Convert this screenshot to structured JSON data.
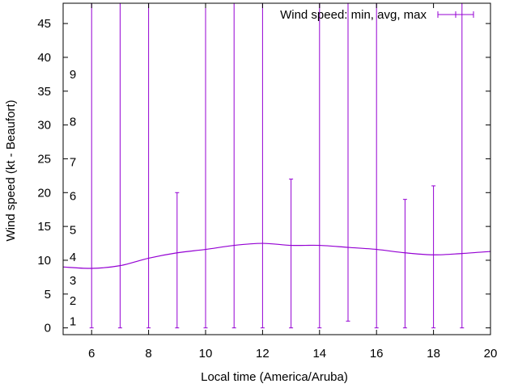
{
  "chart_data": {
    "type": "line",
    "title": "",
    "xlabel": "Local time (America/Aruba)",
    "ylabel": "Wind speed (kt - Beaufort)",
    "xlim": [
      5,
      20
    ],
    "ylim": [
      -1,
      48
    ],
    "x_ticks": [
      6,
      8,
      10,
      12,
      14,
      16,
      18,
      20
    ],
    "y_ticks": [
      0,
      5,
      10,
      15,
      20,
      25,
      30,
      35,
      40,
      45
    ],
    "grid": false,
    "legend": {
      "label": "Wind speed: min, avg, max",
      "position": "top-right"
    },
    "series_color": "#9400d3",
    "avg_curve": [
      {
        "x": 5,
        "y": 9.0
      },
      {
        "x": 6,
        "y": 8.8
      },
      {
        "x": 7,
        "y": 9.2
      },
      {
        "x": 8,
        "y": 10.3
      },
      {
        "x": 9,
        "y": 11.1
      },
      {
        "x": 10,
        "y": 11.6
      },
      {
        "x": 11,
        "y": 12.2
      },
      {
        "x": 12,
        "y": 12.5
      },
      {
        "x": 13,
        "y": 12.2
      },
      {
        "x": 14,
        "y": 12.2
      },
      {
        "x": 15,
        "y": 11.9
      },
      {
        "x": 16,
        "y": 11.6
      },
      {
        "x": 17,
        "y": 11.1
      },
      {
        "x": 18,
        "y": 10.8
      },
      {
        "x": 19,
        "y": 11.0
      },
      {
        "x": 20,
        "y": 11.3
      }
    ],
    "error_bars": [
      {
        "x": 6,
        "min": 0,
        "max": 48
      },
      {
        "x": 7,
        "min": 0,
        "max": 48
      },
      {
        "x": 8,
        "min": 0,
        "max": 48
      },
      {
        "x": 9,
        "min": 0,
        "max": 20
      },
      {
        "x": 10,
        "min": 0,
        "max": 48
      },
      {
        "x": 11,
        "min": 0,
        "max": 48
      },
      {
        "x": 12,
        "min": 0,
        "max": 48
      },
      {
        "x": 13,
        "min": 0,
        "max": 22
      },
      {
        "x": 14,
        "min": 0,
        "max": 48
      },
      {
        "x": 15,
        "min": 1,
        "max": 48
      },
      {
        "x": 16,
        "min": 0,
        "max": 48
      },
      {
        "x": 17,
        "min": 0,
        "max": 19
      },
      {
        "x": 18,
        "min": 0,
        "max": 21
      },
      {
        "x": 19,
        "min": 0,
        "max": 48
      }
    ],
    "beaufort_scale": [
      {
        "label": "1",
        "y": 1.0
      },
      {
        "label": "2",
        "y": 4.0
      },
      {
        "label": "3",
        "y": 7.0
      },
      {
        "label": "4",
        "y": 10.5
      },
      {
        "label": "5",
        "y": 14.5
      },
      {
        "label": "6",
        "y": 19.5
      },
      {
        "label": "7",
        "y": 24.5
      },
      {
        "label": "8",
        "y": 30.5
      },
      {
        "label": "9",
        "y": 37.5
      }
    ]
  }
}
